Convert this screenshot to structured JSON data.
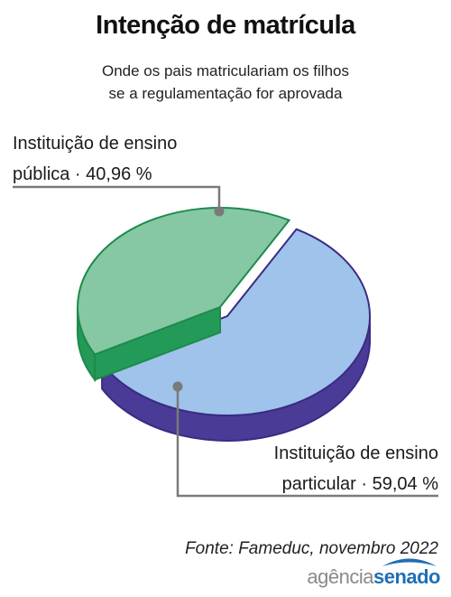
{
  "title": "Intenção de matrícula",
  "subtitle_lines": [
    "Onde os pais matriculariam os filhos",
    "se a regulamentação for aprovada"
  ],
  "source": "Fonte: Fameduc, novembro 2022",
  "logo": {
    "part1": "agência",
    "part2": "senado"
  },
  "colors": {
    "public_top": "#86c8a3",
    "public_side": "#249a59",
    "public_edge": "#1d8a4c",
    "private_top": "#9fc3ea",
    "private_side": "#4a3b96",
    "private_edge": "#3a2b84",
    "leader": "#7a7a7a",
    "logo_blue": "#1f6fb5"
  },
  "chart_data": {
    "type": "pie",
    "title": "Intenção de matrícula",
    "subtitle": "Onde os pais matriculariam os filhos se a regulamentação for aprovada",
    "slices": [
      {
        "label_line1": "Instituição de ensino",
        "label_line2": "pública · 40,96 %",
        "value": 40.96,
        "color": "#86c8a3"
      },
      {
        "label_line1": "Instituição de ensino",
        "label_line2": "particular · 59,04 %",
        "value": 59.04,
        "color": "#9fc3ea"
      }
    ],
    "three_d": true,
    "exploded_slice": 0
  }
}
